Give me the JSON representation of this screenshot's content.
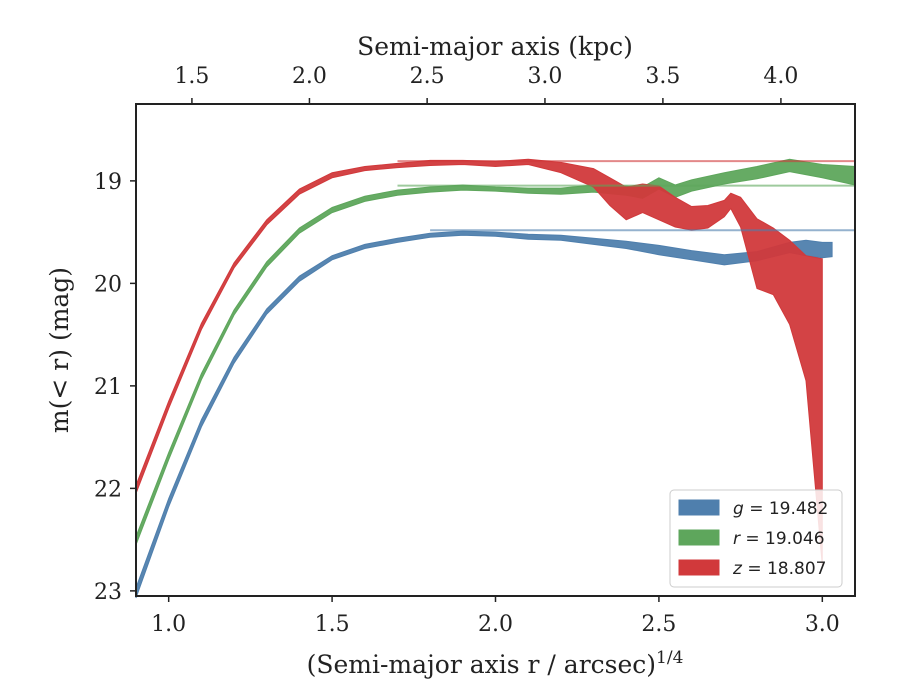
{
  "chart_data": {
    "type": "area",
    "xlabel": "(Semi-major axis r / arcsec)",
    "xlabel_sup": "1/4",
    "ylabel": "m(< r) (mag)",
    "top_xlabel": "Semi-major axis (kpc)",
    "xlim": [
      0.9,
      3.1
    ],
    "ylim": [
      23.05,
      18.25
    ],
    "x_inverted_y": true,
    "x_ticks": [
      1.0,
      1.5,
      2.0,
      2.5,
      3.0
    ],
    "x_tick_labels": [
      "1.0",
      "1.5",
      "2.0",
      "2.5",
      "3.0"
    ],
    "y_ticks": [
      19,
      20,
      21,
      22,
      23
    ],
    "y_tick_labels": [
      "19",
      "20",
      "21",
      "22",
      "23"
    ],
    "top_axis": {
      "ticks_at_bottom_x": [
        1.0711,
        1.4307,
        1.7908,
        2.1513,
        2.5122,
        2.8733
      ],
      "tick_labels": [
        "1.5",
        "2.0",
        "2.5",
        "3.0",
        "3.5",
        "4.0"
      ]
    },
    "grid": false,
    "legend_position": "lower-right",
    "series": [
      {
        "name": "g = 19.482",
        "legend_var": "g",
        "legend_value": "= 19.482",
        "color": "#4f7fad",
        "total_mag": 19.482,
        "band": [
          [
            0.9,
            22.97,
            23.07
          ],
          [
            1.0,
            22.1,
            22.18
          ],
          [
            1.1,
            21.33,
            21.4
          ],
          [
            1.2,
            20.72,
            20.78
          ],
          [
            1.3,
            20.25,
            20.3
          ],
          [
            1.4,
            19.93,
            19.98
          ],
          [
            1.5,
            19.73,
            19.77
          ],
          [
            1.6,
            19.62,
            19.66
          ],
          [
            1.7,
            19.56,
            19.6
          ],
          [
            1.8,
            19.51,
            19.55
          ],
          [
            1.9,
            19.49,
            19.53
          ],
          [
            2.0,
            19.5,
            19.54
          ],
          [
            2.1,
            19.52,
            19.57
          ],
          [
            2.2,
            19.53,
            19.58
          ],
          [
            2.3,
            19.56,
            19.62
          ],
          [
            2.4,
            19.59,
            19.66
          ],
          [
            2.5,
            19.63,
            19.72
          ],
          [
            2.6,
            19.68,
            19.77
          ],
          [
            2.7,
            19.72,
            19.82
          ],
          [
            2.8,
            19.69,
            19.78
          ],
          [
            2.9,
            19.6,
            19.7
          ],
          [
            2.95,
            19.58,
            19.73
          ],
          [
            3.0,
            19.6,
            19.75
          ],
          [
            3.03,
            19.6,
            19.74
          ]
        ]
      },
      {
        "name": "r = 19.046",
        "legend_var": "r",
        "legend_value": "= 19.046",
        "color": "#5ea65c",
        "total_mag": 19.046,
        "band": [
          [
            0.9,
            22.47,
            22.55
          ],
          [
            1.0,
            21.65,
            21.72
          ],
          [
            1.1,
            20.88,
            20.94
          ],
          [
            1.2,
            20.26,
            20.31
          ],
          [
            1.3,
            19.79,
            19.84
          ],
          [
            1.4,
            19.46,
            19.51
          ],
          [
            1.5,
            19.26,
            19.31
          ],
          [
            1.6,
            19.15,
            19.2
          ],
          [
            1.7,
            19.09,
            19.14
          ],
          [
            1.8,
            19.06,
            19.11
          ],
          [
            1.9,
            19.04,
            19.09
          ],
          [
            2.0,
            19.06,
            19.1
          ],
          [
            2.1,
            19.07,
            19.12
          ],
          [
            2.2,
            19.07,
            19.13
          ],
          [
            2.3,
            19.04,
            19.11
          ],
          [
            2.4,
            19.05,
            19.14
          ],
          [
            2.45,
            19.06,
            19.17
          ],
          [
            2.5,
            18.97,
            19.08
          ],
          [
            2.55,
            19.04,
            19.16
          ],
          [
            2.6,
            18.99,
            19.1
          ],
          [
            2.7,
            18.92,
            19.03
          ],
          [
            2.8,
            18.86,
            18.98
          ],
          [
            2.9,
            18.79,
            18.91
          ],
          [
            3.0,
            18.84,
            18.97
          ],
          [
            3.1,
            18.86,
            19.04
          ]
        ]
      },
      {
        "name": "z = 18.807",
        "legend_var": "z",
        "legend_value": "= 18.807",
        "color": "#d1393b",
        "total_mag": 18.807,
        "band": [
          [
            0.9,
            21.97,
            22.05
          ],
          [
            1.0,
            21.15,
            21.22
          ],
          [
            1.1,
            20.39,
            20.45
          ],
          [
            1.2,
            19.8,
            19.85
          ],
          [
            1.3,
            19.38,
            19.43
          ],
          [
            1.4,
            19.08,
            19.13
          ],
          [
            1.5,
            18.92,
            18.97
          ],
          [
            1.6,
            18.86,
            18.9
          ],
          [
            1.7,
            18.83,
            18.87
          ],
          [
            1.8,
            18.8,
            18.85
          ],
          [
            1.9,
            18.8,
            18.84
          ],
          [
            2.0,
            18.81,
            18.86
          ],
          [
            2.1,
            18.79,
            18.84
          ],
          [
            2.2,
            18.82,
            18.92
          ],
          [
            2.3,
            18.88,
            19.06
          ],
          [
            2.35,
            18.97,
            19.24
          ],
          [
            2.4,
            19.06,
            19.38
          ],
          [
            2.45,
            19.03,
            19.31
          ],
          [
            2.5,
            19.05,
            19.38
          ],
          [
            2.55,
            19.16,
            19.45
          ],
          [
            2.6,
            19.25,
            19.48
          ],
          [
            2.65,
            19.24,
            19.46
          ],
          [
            2.7,
            19.19,
            19.35
          ],
          [
            2.72,
            19.12,
            19.27
          ],
          [
            2.75,
            19.16,
            19.45
          ],
          [
            2.8,
            19.37,
            20.05
          ],
          [
            2.85,
            19.46,
            20.11
          ],
          [
            2.9,
            19.58,
            20.4
          ],
          [
            2.95,
            19.73,
            20.95
          ],
          [
            3.0,
            19.76,
            22.75
          ]
        ]
      }
    ]
  }
}
